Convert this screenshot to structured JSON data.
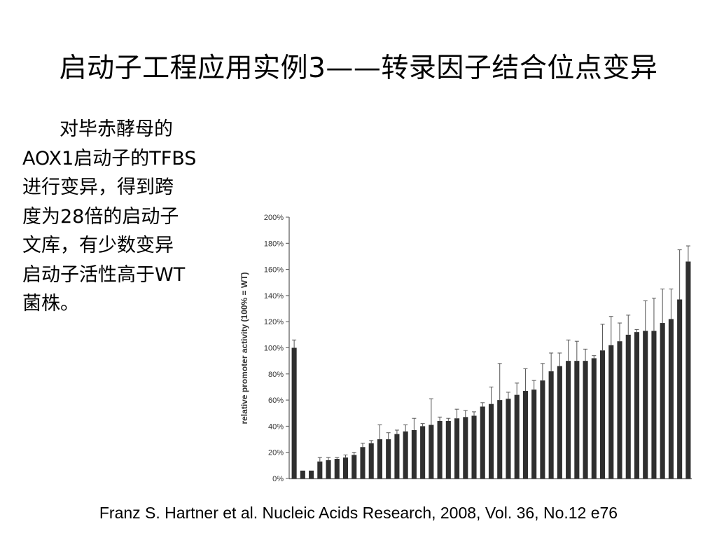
{
  "slide": {
    "title": "启动子工程应用实例3——转录因子结合位点变异",
    "body_lines": [
      "对毕赤酵母的",
      "AOX1启动子的TFBS",
      "进行变异，得到跨",
      "度为28倍的启动子",
      "文库，有少数变异",
      "启动子活性高于WT",
      "菌株。"
    ],
    "citation": "Franz S. Hartner et al. Nucleic Acids Research, 2008, Vol. 36, No.12 e76"
  },
  "chart_data": {
    "type": "bar",
    "title": "",
    "xlabel": "",
    "ylabel": "relative promoter activity (100% = WT)",
    "ylim": [
      0,
      200
    ],
    "yticks": [
      0,
      20,
      40,
      60,
      80,
      100,
      120,
      140,
      160,
      180,
      200
    ],
    "ytick_labels": [
      "0%",
      "20%",
      "40%",
      "60%",
      "80%",
      "100%",
      "120%",
      "140%",
      "160%",
      "180%",
      "200%"
    ],
    "grid": false,
    "legend": "none",
    "bar_color": "#2f2f2f",
    "values": [
      100,
      6,
      6,
      13,
      14,
      15,
      16,
      18,
      24,
      27,
      30,
      30,
      34,
      36,
      37,
      40,
      41,
      44,
      44,
      46,
      47,
      48,
      55,
      57,
      60,
      61,
      64,
      67,
      68,
      75,
      82,
      86,
      90,
      90,
      90,
      92,
      98,
      102,
      105,
      110,
      112,
      113,
      113,
      119,
      122,
      137,
      166
    ],
    "errors": [
      6,
      0,
      0,
      3,
      2,
      1,
      2,
      2,
      3,
      2,
      11,
      5,
      3,
      5,
      9,
      2,
      20,
      3,
      2,
      7,
      5,
      3,
      3,
      13,
      28,
      5,
      9,
      17,
      7,
      13,
      14,
      10,
      16,
      15,
      9,
      2,
      20,
      22,
      14,
      15,
      2,
      23,
      25,
      26,
      23,
      38,
      12
    ]
  }
}
